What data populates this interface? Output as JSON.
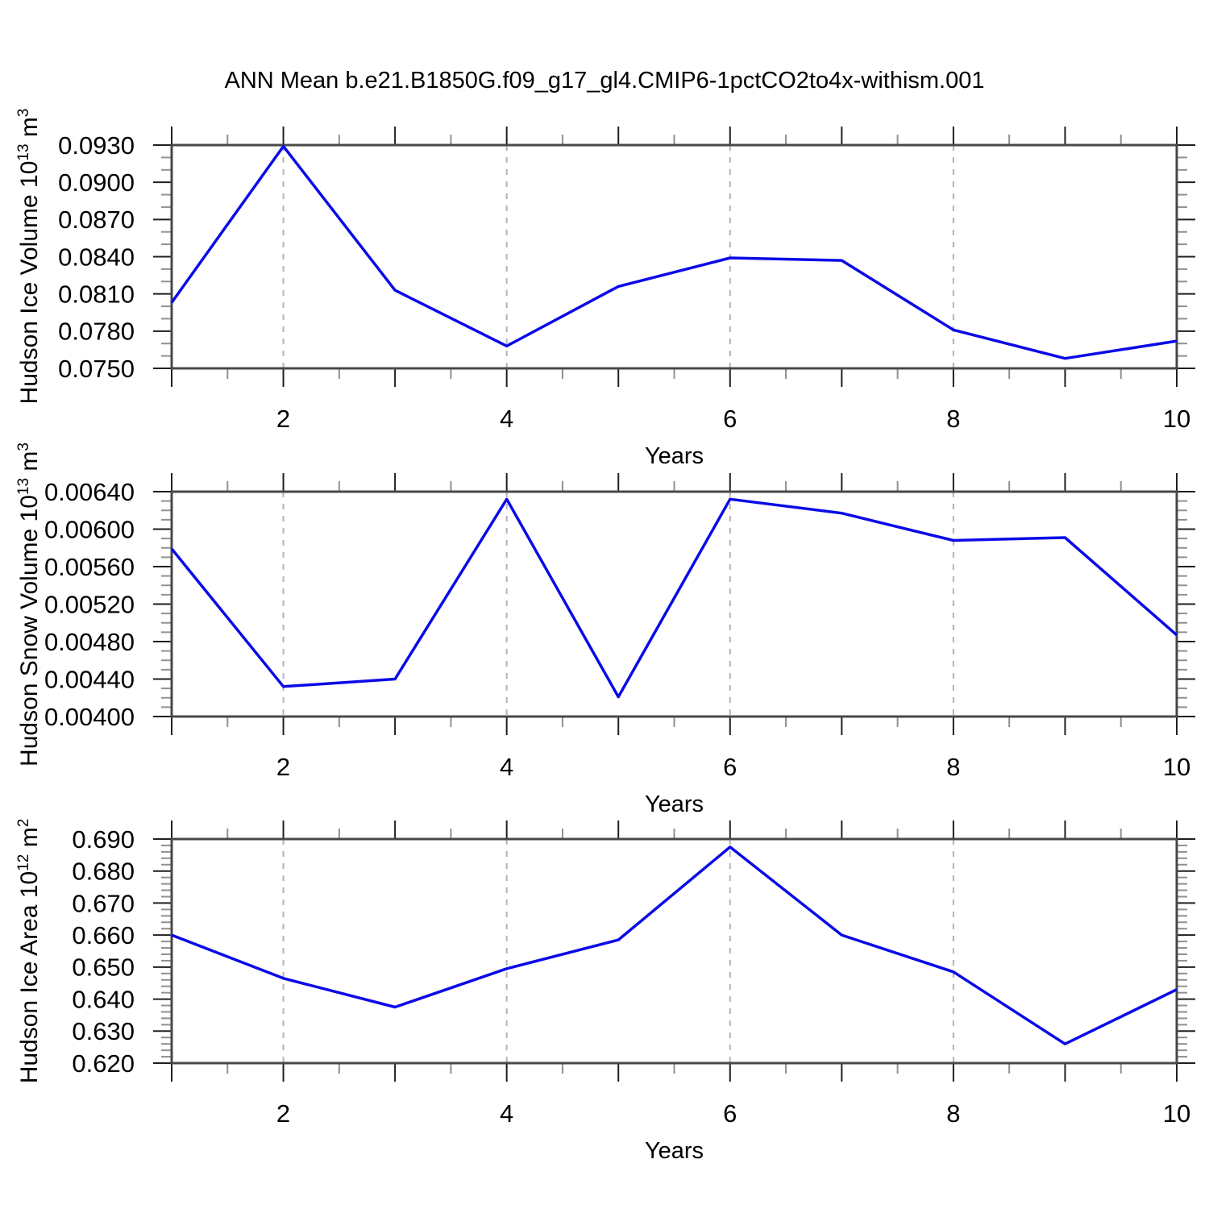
{
  "title": "ANN Mean b.e21.B1850G.f09_g17_gl4.CMIP6-1pctCO2to4x-withism.001",
  "colors": {
    "background": "#ffffff",
    "line": "#0a0ae8",
    "frame": "#484848",
    "grid": "#b3b3b3",
    "tick_major": "#1f1f1f",
    "tick_minor": "#909090",
    "text": "#000000"
  },
  "chart_data": [
    {
      "type": "line",
      "name": "hudson-ice-volume",
      "ylabel_text": "Hudson Ice Volume 10^13 m^3",
      "ylabel_segments": [
        {
          "text": "Hudson Ice Volume 10"
        },
        {
          "text": "13",
          "sup": true
        },
        {
          "text": " m"
        },
        {
          "text": "3",
          "sup": true
        }
      ],
      "xlabel": "Years",
      "x": [
        1,
        2,
        3,
        4,
        5,
        6,
        7,
        8,
        9,
        10
      ],
      "values": [
        0.0803,
        0.0929,
        0.0813,
        0.0768,
        0.0816,
        0.0839,
        0.0837,
        0.0781,
        0.0758,
        0.0772
      ],
      "xlim": [
        1,
        10
      ],
      "ylim": [
        0.075,
        0.093
      ],
      "ytick_labels": [
        "0.0930",
        "0.0900",
        "0.0870",
        "0.0840",
        "0.0810",
        "0.0780",
        "0.0750"
      ],
      "ytick_values": [
        0.093,
        0.09,
        0.087,
        0.084,
        0.081,
        0.078,
        0.075
      ],
      "yminor_step": 0.001,
      "xtick_labels": [
        "2",
        "4",
        "6",
        "8",
        "10"
      ],
      "xtick_label_values": [
        2,
        4,
        6,
        8,
        10
      ],
      "xmajor_step": 1,
      "xminor_step": 0.5,
      "grid_x": [
        2,
        4,
        6,
        8
      ],
      "grid_style": "dashed",
      "legend": null
    },
    {
      "type": "line",
      "name": "hudson-snow-volume",
      "ylabel_text": "Hudson Snow Volume 10^13 m^3",
      "ylabel_segments": [
        {
          "text": "Hudson Snow Volume 10"
        },
        {
          "text": "13",
          "sup": true
        },
        {
          "text": " m"
        },
        {
          "text": "3",
          "sup": true
        }
      ],
      "xlabel": "Years",
      "x": [
        1,
        2,
        3,
        4,
        5,
        6,
        7,
        8,
        9,
        10
      ],
      "values": [
        0.00579,
        0.00432,
        0.0044,
        0.00632,
        0.00421,
        0.00632,
        0.00617,
        0.00588,
        0.00591,
        0.00487
      ],
      "xlim": [
        1,
        10
      ],
      "ylim": [
        0.004,
        0.0064
      ],
      "ytick_labels": [
        "0.00640",
        "0.00600",
        "0.00560",
        "0.00520",
        "0.00480",
        "0.00440",
        "0.00400"
      ],
      "ytick_values": [
        0.0064,
        0.006,
        0.0056,
        0.0052,
        0.0048,
        0.0044,
        0.004
      ],
      "yminor_step": 0.0001,
      "xtick_labels": [
        "2",
        "4",
        "6",
        "8",
        "10"
      ],
      "xtick_label_values": [
        2,
        4,
        6,
        8,
        10
      ],
      "xmajor_step": 1,
      "xminor_step": 0.5,
      "grid_x": [
        2,
        4,
        6,
        8
      ],
      "grid_style": "dashed",
      "legend": null
    },
    {
      "type": "line",
      "name": "hudson-ice-area",
      "ylabel_text": "Hudson Ice Area 10^12 m^2",
      "ylabel_segments": [
        {
          "text": "Hudson Ice Area 10"
        },
        {
          "text": "12",
          "sup": true
        },
        {
          "text": " m"
        },
        {
          "text": "2",
          "sup": true
        }
      ],
      "xlabel": "Years",
      "x": [
        1,
        2,
        3,
        4,
        5,
        6,
        7,
        8,
        9,
        10
      ],
      "values": [
        0.66,
        0.6465,
        0.6375,
        0.6495,
        0.6585,
        0.6875,
        0.66,
        0.6485,
        0.626,
        0.643
      ],
      "xlim": [
        1,
        10
      ],
      "ylim": [
        0.62,
        0.69
      ],
      "ytick_labels": [
        "0.690",
        "0.680",
        "0.670",
        "0.660",
        "0.650",
        "0.640",
        "0.630",
        "0.620"
      ],
      "ytick_values": [
        0.69,
        0.68,
        0.67,
        0.66,
        0.65,
        0.64,
        0.63,
        0.62
      ],
      "yminor_step": 0.002,
      "xtick_labels": [
        "2",
        "4",
        "6",
        "8",
        "10"
      ],
      "xtick_label_values": [
        2,
        4,
        6,
        8,
        10
      ],
      "xmajor_step": 1,
      "xminor_step": 0.5,
      "grid_x": [
        2,
        4,
        6,
        8
      ],
      "grid_style": "dashed",
      "legend": null
    }
  ]
}
